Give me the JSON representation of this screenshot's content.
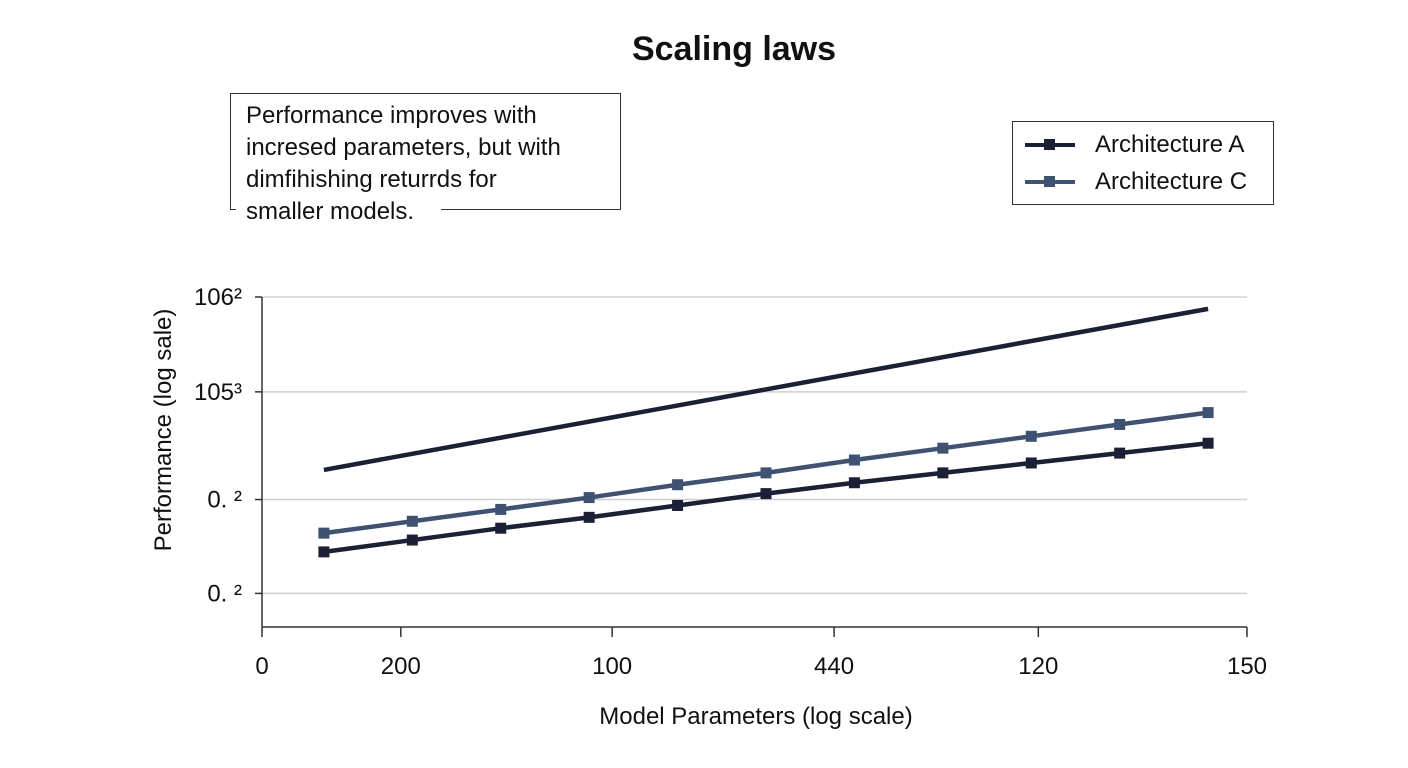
{
  "chart_data": {
    "type": "line",
    "title": "Scaling laws",
    "xlabel": "Model Parameters (log scale)",
    "ylabel": "Performance (log sale)",
    "annotation": "Performance improves with\nincresed parameters, but with\ndimfihishing returrds for\nsmaller models.",
    "x_ticks": [
      {
        "label": "0",
        "x": 0.3
      },
      {
        "label": "200",
        "x": 1.87
      },
      {
        "label": "100",
        "x": 4.26
      },
      {
        "label": "440",
        "x": 6.77
      },
      {
        "label": "120",
        "x": 9.08
      },
      {
        "label": "150",
        "x": 11.44
      }
    ],
    "y_ticks": [
      {
        "label": "106²",
        "y": 3
      },
      {
        "label": "105³",
        "y": 2.04
      },
      {
        "label": "0. ²",
        "y": 0.95
      },
      {
        "label": "0. ²",
        "y": 0
      }
    ],
    "xlim": [
      0.3,
      11.44
    ],
    "ylim": [
      -0.34,
      3
    ],
    "grid": true,
    "legend_position": "top-right",
    "series": [
      {
        "name": "Architecture A",
        "color": "#1c2036",
        "markers": true,
        "x": [
          1,
          2,
          3,
          4,
          5,
          6,
          7,
          8,
          9,
          10,
          11
        ],
        "values": [
          0.42,
          0.54,
          0.66,
          0.77,
          0.89,
          1.01,
          1.12,
          1.22,
          1.32,
          1.42,
          1.52
        ]
      },
      {
        "name": "Architecture C",
        "color": "#3f5272",
        "markers": true,
        "x": [
          1,
          2,
          3,
          4,
          5,
          6,
          7,
          8,
          9,
          10,
          11
        ],
        "values": [
          0.61,
          0.73,
          0.85,
          0.97,
          1.1,
          1.22,
          1.35,
          1.47,
          1.59,
          1.71,
          1.83
        ]
      },
      {
        "color": "#1c2036",
        "markers": false,
        "x": [
          1,
          11
        ],
        "values": [
          1.25,
          2.88
        ]
      }
    ]
  }
}
